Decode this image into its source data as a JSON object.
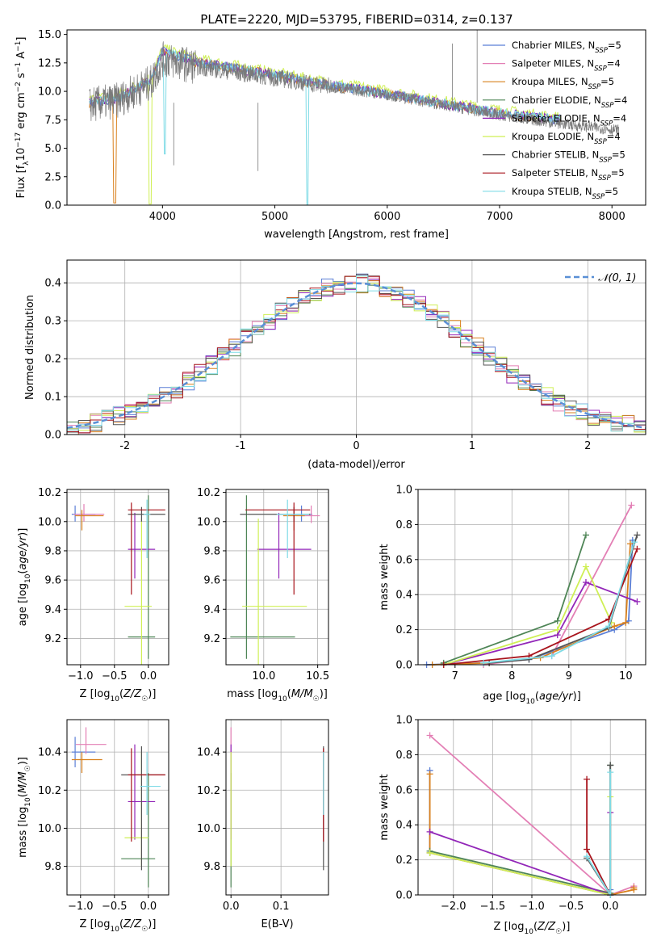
{
  "title": "PLATE=2220, MJD=53795, FIBERID=0314, z=0.137",
  "colors": {
    "Chabrier MILES": "#5b7fd6",
    "Salpeter MILES": "#e37fb5",
    "Kroupa MILES": "#d9801c",
    "Chabrier ELODIE": "#4e8556",
    "Salpeter ELODIE": "#9226b8",
    "Kroupa ELODIE": "#cfef55",
    "Chabrier STELIB": "#555555",
    "Salpeter STELIB": "#a8141c",
    "Kroupa STELIB": "#7fdbe6",
    "spectrum": "#7a7a7a",
    "gauss": "#5a8fd6"
  },
  "chart_data": [
    {
      "type": "line",
      "name": "spectrum",
      "xlabel": "wavelength [Angstrom, rest frame]",
      "ylabel": "Flux [f",
      "ylabel_parts": [
        "Flux [f",
        "λ",
        "10",
        "−17",
        " erg cm",
        "−2",
        " s",
        "−1",
        " A",
        "−1",
        "]"
      ],
      "xlim": [
        3150,
        8300
      ],
      "ylim": [
        0,
        15.4
      ],
      "xticks": [
        4000,
        5000,
        6000,
        7000,
        8000
      ],
      "yticks": [
        "0.0",
        "2.5",
        "5.0",
        "7.5",
        "10.0",
        "12.5",
        "15.0"
      ],
      "legend": [
        {
          "base": "Chabrier MILES, N",
          "sub": "SSP",
          "tail": "=5"
        },
        {
          "base": "Salpeter MILES, N",
          "sub": "SSP",
          "tail": "=4"
        },
        {
          "base": "Kroupa MILES, N",
          "sub": "SSP",
          "tail": "=5"
        },
        {
          "base": "Chabrier ELODIE, N",
          "sub": "SSP",
          "tail": "=4"
        },
        {
          "base": "Salpeter ELODIE, N",
          "sub": "SSP",
          "tail": "=4"
        },
        {
          "base": "Kroupa ELODIE, N",
          "sub": "SSP",
          "tail": "=4"
        },
        {
          "base": "Chabrier STELIB, N",
          "sub": "SSP",
          "tail": "=5"
        },
        {
          "base": "Salpeter STELIB, N",
          "sub": "SSP",
          "tail": "=5"
        },
        {
          "base": "Kroupa STELIB, N",
          "sub": "SSP",
          "tail": "=5"
        }
      ],
      "spectrum_trend": {
        "x": [
          3350,
          3600,
          3900,
          4000,
          4300,
          5000,
          5500,
          6000,
          6500,
          7000,
          7500,
          8050
        ],
        "y": [
          8.8,
          9.2,
          10.8,
          12.8,
          12.2,
          11.2,
          10.4,
          9.7,
          8.8,
          7.9,
          7.2,
          6.6
        ]
      },
      "model_trend": {
        "x": [
          3350,
          3600,
          3900,
          4000,
          4300,
          5000,
          5500,
          6000,
          6500,
          7000,
          7500
        ],
        "y": [
          9.0,
          9.4,
          11.0,
          13.5,
          12.6,
          11.4,
          10.5,
          9.8,
          8.9,
          8.1,
          7.5
        ]
      }
    },
    {
      "type": "bar",
      "name": "residual histogram",
      "xlabel": "(data-model)/error",
      "ylabel": "Normed distribution",
      "xlim": [
        -2.5,
        2.5
      ],
      "ylim": [
        0,
        0.46
      ],
      "xticks": [
        -2,
        -1,
        0,
        1,
        2
      ],
      "yticks": [
        "0.0",
        "0.1",
        "0.2",
        "0.3",
        "0.4"
      ],
      "legend": [
        {
          "label": "𝒩(0, 1)"
        }
      ],
      "bin_width": 0.1
    },
    {
      "type": "scatter",
      "name": "age vs Z",
      "xlabel": "Z [log10(Z/Z☉)]",
      "ylabel": "age [log10(age/yr)]",
      "xlim": [
        -1.2,
        0.3
      ],
      "ylim": [
        9.02,
        10.22
      ],
      "xticks": [
        "−1.0",
        "−0.5",
        "0.0"
      ],
      "yticks": [
        "9.2",
        "9.4",
        "9.6",
        "9.8",
        "10.0",
        "10.2"
      ],
      "points": [
        {
          "s": "Chabrier MILES",
          "x": -1.08,
          "y": 10.05,
          "ex": [
            0.05,
            0.3
          ],
          "ey": [
            0.05,
            0.06
          ]
        },
        {
          "s": "Salpeter MILES",
          "x": -0.95,
          "y": 10.05,
          "ex": [
            0.15,
            0.3
          ],
          "ey": [
            0.05,
            0.07
          ]
        },
        {
          "s": "Kroupa MILES",
          "x": -0.98,
          "y": 10.04,
          "ex": [
            0.1,
            0.32
          ],
          "ey": [
            0.1,
            0.04
          ]
        },
        {
          "s": "Chabrier ELODIE",
          "x": 0.0,
          "y": 9.21,
          "ex": [
            0.3,
            0.1
          ],
          "ey": [
            0.15,
            0.97
          ]
        },
        {
          "s": "Salpeter ELODIE",
          "x": -0.2,
          "y": 9.81,
          "ex": [
            0.1,
            0.3
          ],
          "ey": [
            0.2,
            0.25
          ]
        },
        {
          "s": "Kroupa ELODIE",
          "x": -0.1,
          "y": 9.42,
          "ex": [
            0.25,
            0.15
          ],
          "ey": [
            0.4,
            0.6
          ]
        },
        {
          "s": "Chabrier STELIB",
          "x": -0.1,
          "y": 10.05,
          "ex": [
            0.2,
            0.35
          ],
          "ey": [
            0.05,
            0.05
          ]
        },
        {
          "s": "Salpeter STELIB",
          "x": -0.25,
          "y": 10.08,
          "ex": [
            0.05,
            0.5
          ],
          "ey": [
            0.58,
            0.05
          ]
        },
        {
          "s": "Kroupa STELIB",
          "x": -0.02,
          "y": 10.05,
          "ex": [
            0.05,
            0.05
          ],
          "ey": [
            0.3,
            0.1
          ]
        }
      ]
    },
    {
      "type": "scatter",
      "name": "age vs mass",
      "xlabel": "mass [log10(M/M☉)]",
      "ylabel": "",
      "xlim": [
        9.65,
        10.6
      ],
      "ylim": [
        9.02,
        10.22
      ],
      "xticks": [
        "10.0",
        "10.5"
      ],
      "yticks": [
        "9.2",
        "9.4",
        "9.6",
        "9.8",
        "10.0",
        "10.2"
      ],
      "points": [
        {
          "s": "Chabrier MILES",
          "x": 10.35,
          "y": 10.05,
          "ex": [
            0.1,
            0.1
          ],
          "ey": [
            0.05,
            0.06
          ]
        },
        {
          "s": "Salpeter MILES",
          "x": 10.44,
          "y": 10.04,
          "ex": [
            0.1,
            0.08
          ],
          "ey": [
            0.05,
            0.07
          ]
        },
        {
          "s": "Kroupa MILES",
          "x": 10.28,
          "y": 10.04,
          "ex": [
            0.1,
            0.1
          ],
          "ey": [
            0.1,
            0.04
          ]
        },
        {
          "s": "Chabrier ELODIE",
          "x": 9.84,
          "y": 9.21,
          "ex": [
            0.15,
            0.45
          ],
          "ey": [
            0.15,
            0.97
          ]
        },
        {
          "s": "Salpeter ELODIE",
          "x": 10.14,
          "y": 9.81,
          "ex": [
            0.2,
            0.3
          ],
          "ey": [
            0.2,
            0.25
          ]
        },
        {
          "s": "Kroupa ELODIE",
          "x": 9.95,
          "y": 9.42,
          "ex": [
            0.15,
            0.45
          ],
          "ey": [
            0.4,
            0.6
          ]
        },
        {
          "s": "Chabrier STELIB",
          "x": 10.28,
          "y": 10.05,
          "ex": [
            0.5,
            0.15
          ],
          "ey": [
            0.05,
            0.05
          ]
        },
        {
          "s": "Salpeter STELIB",
          "x": 10.28,
          "y": 10.08,
          "ex": [
            0.45,
            0.15
          ],
          "ey": [
            0.58,
            0.05
          ]
        },
        {
          "s": "Kroupa STELIB",
          "x": 10.22,
          "y": 10.05,
          "ex": [
            0.1,
            0.2
          ],
          "ey": [
            0.3,
            0.1
          ]
        }
      ]
    },
    {
      "type": "line",
      "name": "mass weight vs age",
      "xlabel": "age [log10(age/yr)]",
      "ylabel": "mass weight",
      "xlim": [
        6.35,
        10.35
      ],
      "ylim": [
        0,
        1.0
      ],
      "xticks": [
        "7",
        "8",
        "9",
        "10"
      ],
      "yticks": [
        "0.0",
        "0.2",
        "0.4",
        "0.6",
        "0.8",
        "1.0"
      ],
      "series": [
        {
          "name": "Chabrier MILES",
          "x": [
            6.5,
            7.5,
            8.3,
            9.8,
            10.05,
            10.12
          ],
          "y": [
            0.0,
            0.01,
            0.03,
            0.2,
            0.25,
            0.71
          ]
        },
        {
          "name": "Salpeter MILES",
          "x": [
            7.5,
            8.7,
            10.1
          ],
          "y": [
            0.0,
            0.05,
            0.91
          ]
        },
        {
          "name": "Kroupa MILES",
          "x": [
            6.6,
            7.6,
            8.5,
            9.8,
            10.0,
            10.08
          ],
          "y": [
            0.0,
            0.01,
            0.04,
            0.22,
            0.24,
            0.69
          ]
        },
        {
          "name": "Chabrier ELODIE",
          "x": [
            6.8,
            8.8,
            9.3
          ],
          "y": [
            0.01,
            0.25,
            0.74
          ]
        },
        {
          "name": "Salpeter ELODIE",
          "x": [
            6.8,
            8.8,
            9.3,
            10.2
          ],
          "y": [
            0.0,
            0.17,
            0.47,
            0.36
          ]
        },
        {
          "name": "Kroupa ELODIE",
          "x": [
            6.8,
            8.8,
            9.3,
            9.75
          ],
          "y": [
            0.0,
            0.2,
            0.56,
            0.24
          ]
        },
        {
          "name": "Chabrier STELIB",
          "x": [
            7.6,
            8.3,
            9.7,
            10.2
          ],
          "y": [
            0.01,
            0.03,
            0.21,
            0.74
          ]
        },
        {
          "name": "Salpeter STELIB",
          "x": [
            6.8,
            8.3,
            9.7,
            10.2
          ],
          "y": [
            0.0,
            0.05,
            0.26,
            0.66
          ]
        },
        {
          "name": "Kroupa STELIB",
          "x": [
            7.5,
            8.7,
            9.7,
            10.15
          ],
          "y": [
            0.01,
            0.05,
            0.22,
            0.7
          ]
        }
      ]
    },
    {
      "type": "scatter",
      "name": "mass vs Z",
      "xlabel": "Z [log10(Z/Z☉)]",
      "ylabel": "mass [log10(M/M☉)]",
      "xlim": [
        -1.2,
        0.3
      ],
      "ylim": [
        9.65,
        10.57
      ],
      "xticks": [
        "−1.0",
        "−0.5",
        "0.0"
      ],
      "yticks": [
        "9.8",
        "10.0",
        "10.2",
        "10.4"
      ],
      "points": [
        {
          "s": "Chabrier MILES",
          "x": -1.08,
          "y": 10.4,
          "ex": [
            0.05,
            0.3
          ],
          "ey": [
            0.08,
            0.08
          ]
        },
        {
          "s": "Salpeter MILES",
          "x": -0.92,
          "y": 10.44,
          "ex": [
            0.15,
            0.3
          ],
          "ey": [
            0.05,
            0.09
          ]
        },
        {
          "s": "Kroupa MILES",
          "x": -0.98,
          "y": 10.36,
          "ex": [
            0.15,
            0.3
          ],
          "ey": [
            0.07,
            0.04
          ]
        },
        {
          "s": "Chabrier ELODIE",
          "x": 0.0,
          "y": 9.84,
          "ex": [
            0.4,
            0.1
          ],
          "ey": [
            0.15,
            0.45
          ]
        },
        {
          "s": "Salpeter ELODIE",
          "x": -0.2,
          "y": 10.14,
          "ex": [
            0.1,
            0.3
          ],
          "ey": [
            0.2,
            0.3
          ]
        },
        {
          "s": "Kroupa ELODIE",
          "x": -0.1,
          "y": 9.95,
          "ex": [
            0.25,
            0.1
          ],
          "ey": [
            0.15,
            0.45
          ]
        },
        {
          "s": "Chabrier STELIB",
          "x": -0.1,
          "y": 10.28,
          "ex": [
            0.3,
            0.35
          ],
          "ey": [
            0.5,
            0.15
          ]
        },
        {
          "s": "Salpeter STELIB",
          "x": -0.25,
          "y": 10.28,
          "ex": [
            0.05,
            0.5
          ],
          "ey": [
            0.35,
            0.14
          ]
        },
        {
          "s": "Kroupa STELIB",
          "x": -0.02,
          "y": 10.22,
          "ex": [
            0.1,
            0.2
          ],
          "ey": [
            0.15,
            0.18
          ]
        }
      ]
    },
    {
      "type": "scatter",
      "name": "mass vs E(B-V)",
      "xlabel": "E(B-V)",
      "ylabel": "",
      "xlim": [
        -0.01,
        0.195
      ],
      "ylim": [
        9.65,
        10.57
      ],
      "xticks": [
        "0.0",
        "0.1"
      ],
      "yticks": [
        "9.8",
        "10.0",
        "10.2",
        "10.4"
      ],
      "points": [
        {
          "s": "Salpeter MILES",
          "x": 0.0,
          "y": 10.44,
          "ex": [
            0,
            0
          ],
          "ey": [
            0.05,
            0.09
          ]
        },
        {
          "s": "Chabrier ELODIE",
          "x": 0.0,
          "y": 9.84,
          "ex": [
            0,
            0
          ],
          "ey": [
            0.15,
            0.45
          ]
        },
        {
          "s": "Salpeter ELODIE",
          "x": 0.0,
          "y": 10.14,
          "ex": [
            0,
            0
          ],
          "ey": [
            0.2,
            0.3
          ]
        },
        {
          "s": "Kroupa ELODIE",
          "x": 0.0,
          "y": 9.95,
          "ex": [
            0,
            0
          ],
          "ey": [
            0.15,
            0.45
          ]
        },
        {
          "s": "Chabrier STELIB",
          "x": 0.185,
          "y": 10.28,
          "ex": [
            0,
            0
          ],
          "ey": [
            0.5,
            0.15
          ]
        },
        {
          "s": "Salpeter STELIB",
          "x": 0.185,
          "y": 10.28,
          "ex": [
            0,
            0
          ],
          "ey": [
            0.35,
            0.14
          ]
        },
        {
          "s": "Kroupa STELIB",
          "x": 0.185,
          "y": 10.22,
          "ex": [
            0,
            0
          ],
          "ey": [
            0.15,
            0.18
          ]
        }
      ]
    },
    {
      "type": "line",
      "name": "mass weight vs Z",
      "xlabel": "Z [log10(Z/Z☉)]",
      "ylabel": "mass weight",
      "xlim": [
        -2.45,
        0.45
      ],
      "ylim": [
        0,
        1.0
      ],
      "xticks": [
        "−2.0",
        "−1.5",
        "−1.0",
        "−0.5",
        "0.0"
      ],
      "yticks": [
        "0.0",
        "0.2",
        "0.4",
        "0.6",
        "0.8",
        "1.0"
      ],
      "series": [
        {
          "name": "Chabrier MILES",
          "x": [
            -2.3,
            -2.3,
            0.0,
            0.0
          ],
          "y": [
            0.71,
            0.24,
            0.0,
            0.03
          ]
        },
        {
          "name": "Salpeter MILES",
          "x": [
            -2.3,
            0.0,
            0.3
          ],
          "y": [
            0.91,
            0.0,
            0.05
          ]
        },
        {
          "name": "Kroupa MILES",
          "x": [
            -2.3,
            -2.3,
            0.0,
            0.3,
            0.3
          ],
          "y": [
            0.69,
            0.24,
            0.0,
            0.03,
            0.04
          ]
        },
        {
          "name": "Chabrier ELODIE",
          "x": [
            -2.3,
            0.0,
            0.0
          ],
          "y": [
            0.25,
            0.01,
            0.74
          ]
        },
        {
          "name": "Salpeter ELODIE",
          "x": [
            -2.3,
            0.0,
            0.0
          ],
          "y": [
            0.36,
            0.0,
            0.47
          ]
        },
        {
          "name": "Kroupa ELODIE",
          "x": [
            -2.3,
            0.0,
            0.0
          ],
          "y": [
            0.24,
            0.0,
            0.56
          ]
        },
        {
          "name": "Chabrier STELIB",
          "x": [
            -0.3,
            0.0,
            0.0
          ],
          "y": [
            0.21,
            0.0,
            0.74
          ]
        },
        {
          "name": "Salpeter STELIB",
          "x": [
            -0.3,
            -0.3,
            0.0
          ],
          "y": [
            0.66,
            0.26,
            0.0
          ]
        },
        {
          "name": "Kroupa STELIB",
          "x": [
            -0.3,
            0.0,
            0.0
          ],
          "y": [
            0.22,
            0.0,
            0.7
          ]
        }
      ]
    }
  ]
}
